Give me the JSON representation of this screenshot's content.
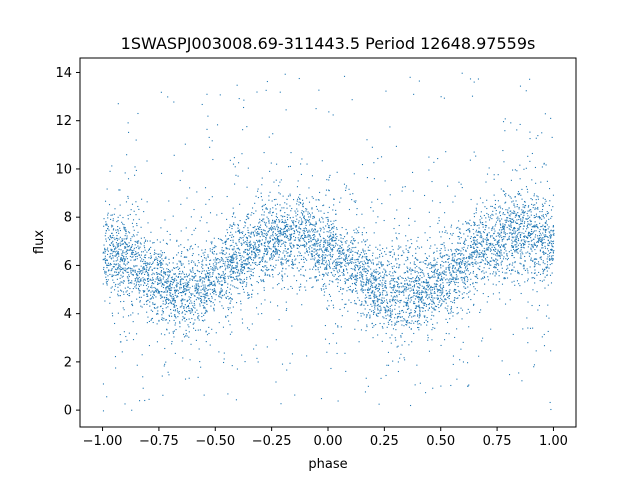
{
  "chart_data": {
    "type": "scatter",
    "title": "1SWASPJ003008.69-311443.5 Period 12648.97559s",
    "xlabel": "phase",
    "ylabel": "flux",
    "xlim": [
      -1.1,
      1.1
    ],
    "ylim": [
      -0.7,
      14.6
    ],
    "xticks": [
      -1.0,
      -0.75,
      -0.5,
      -0.25,
      0.0,
      0.25,
      0.5,
      0.75,
      1.0
    ],
    "xtick_labels": [
      "−1.00",
      "−0.75",
      "−0.50",
      "−0.25",
      "0.00",
      "0.25",
      "0.50",
      "0.75",
      "1.00"
    ],
    "yticks": [
      0,
      2,
      4,
      6,
      8,
      10,
      12,
      14
    ],
    "ytick_labels": [
      "0",
      "2",
      "4",
      "6",
      "8",
      "10",
      "12",
      "14"
    ],
    "grid": false,
    "marker_color": "#1f77b4",
    "series": [
      {
        "phase": [
          -1.0,
          -0.9,
          -0.8,
          -0.7,
          -0.6,
          -0.5,
          -0.4,
          -0.3,
          -0.2,
          -0.1,
          0.0,
          0.1,
          0.2,
          0.3,
          0.4,
          0.5,
          0.6,
          0.7,
          0.8,
          0.9,
          1.0
        ],
        "flux_center": [
          6.6,
          6.3,
          5.6,
          5.0,
          5.0,
          5.5,
          6.3,
          6.9,
          7.3,
          7.3,
          6.8,
          6.0,
          5.2,
          4.8,
          4.9,
          5.4,
          6.2,
          6.9,
          7.3,
          7.3,
          7.0
        ],
        "flux_spread": 1.1
      }
    ]
  }
}
